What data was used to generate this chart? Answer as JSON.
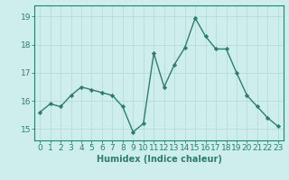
{
  "x": [
    0,
    1,
    2,
    3,
    4,
    5,
    6,
    7,
    8,
    9,
    10,
    11,
    12,
    13,
    14,
    15,
    16,
    17,
    18,
    19,
    20,
    21,
    22,
    23
  ],
  "y": [
    15.6,
    15.9,
    15.8,
    16.2,
    16.5,
    16.4,
    16.3,
    16.2,
    15.8,
    14.9,
    15.2,
    17.7,
    16.5,
    17.3,
    17.9,
    18.95,
    18.3,
    17.85,
    17.85,
    17.0,
    16.2,
    15.8,
    15.4,
    15.1
  ],
  "line_color": "#2d7d6e",
  "marker": "D",
  "marker_size": 2.2,
  "line_width": 1.0,
  "bg_color": "#ceeeed",
  "grid_color": "#b8dcda",
  "xlabel": "Humidex (Indice chaleur)",
  "xlabel_fontsize": 7,
  "tick_fontsize": 6.5,
  "ylim": [
    14.6,
    19.4
  ],
  "yticks": [
    15,
    16,
    17,
    18,
    19
  ],
  "xticks": [
    0,
    1,
    2,
    3,
    4,
    5,
    6,
    7,
    8,
    9,
    10,
    11,
    12,
    13,
    14,
    15,
    16,
    17,
    18,
    19,
    20,
    21,
    22,
    23
  ]
}
